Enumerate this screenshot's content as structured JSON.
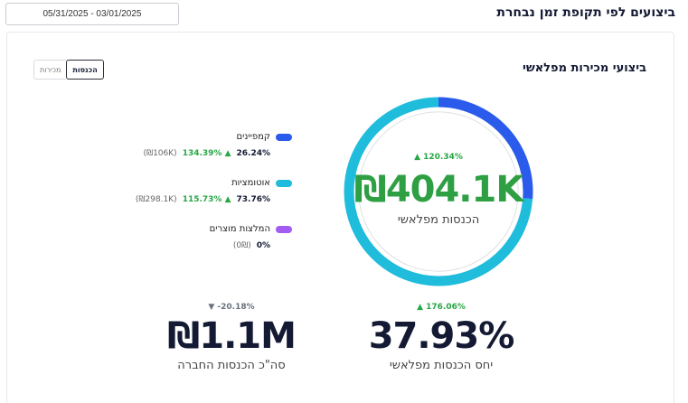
{
  "header": {
    "title": "ביצועים לפי תקופת זמן נבחרת",
    "date_range": "05/31/2025 - 03/01/2025"
  },
  "card": {
    "title": "ביצועי מכירות מפלאשי",
    "toggle": {
      "active": "הכנסות",
      "inactive": "מכירות"
    }
  },
  "legend": [
    {
      "label": "קמפיינים",
      "percent": "26.24%",
      "change": "▲ 134.39%",
      "amount": "(106K₪)",
      "color": "#2a5bea"
    },
    {
      "label": "אוטומציות",
      "percent": "73.76%",
      "change": "▲ 115.73%",
      "amount": "(298.1K₪)",
      "color": "#1fbcdc"
    },
    {
      "label": "המלצות מוצרים",
      "percent": "0%",
      "change": "",
      "amount": "(0₪)",
      "color": "#a35cf0"
    }
  ],
  "donut": {
    "center_change": "▲ 120.34%",
    "center_value": "₪404.1K",
    "center_label": "הכנסות מפלאשי",
    "segments": [
      {
        "name": "קמפיינים",
        "value": 26.24,
        "color": "#2a5bea"
      },
      {
        "name": "אוטומציות",
        "value": 73.76,
        "color": "#1fbcdc"
      },
      {
        "name": "המלצות מוצרים",
        "value": 0,
        "color": "#a35cf0"
      }
    ]
  },
  "kpis": {
    "ratio": {
      "change": "▲ 176.06%",
      "value": "37.93%",
      "label": "יחס הכנסות מפלאשי"
    },
    "total": {
      "change": "▼ -20.18%",
      "value": "₪1.1M",
      "label": "סה\"כ הכנסות החברה"
    }
  }
}
